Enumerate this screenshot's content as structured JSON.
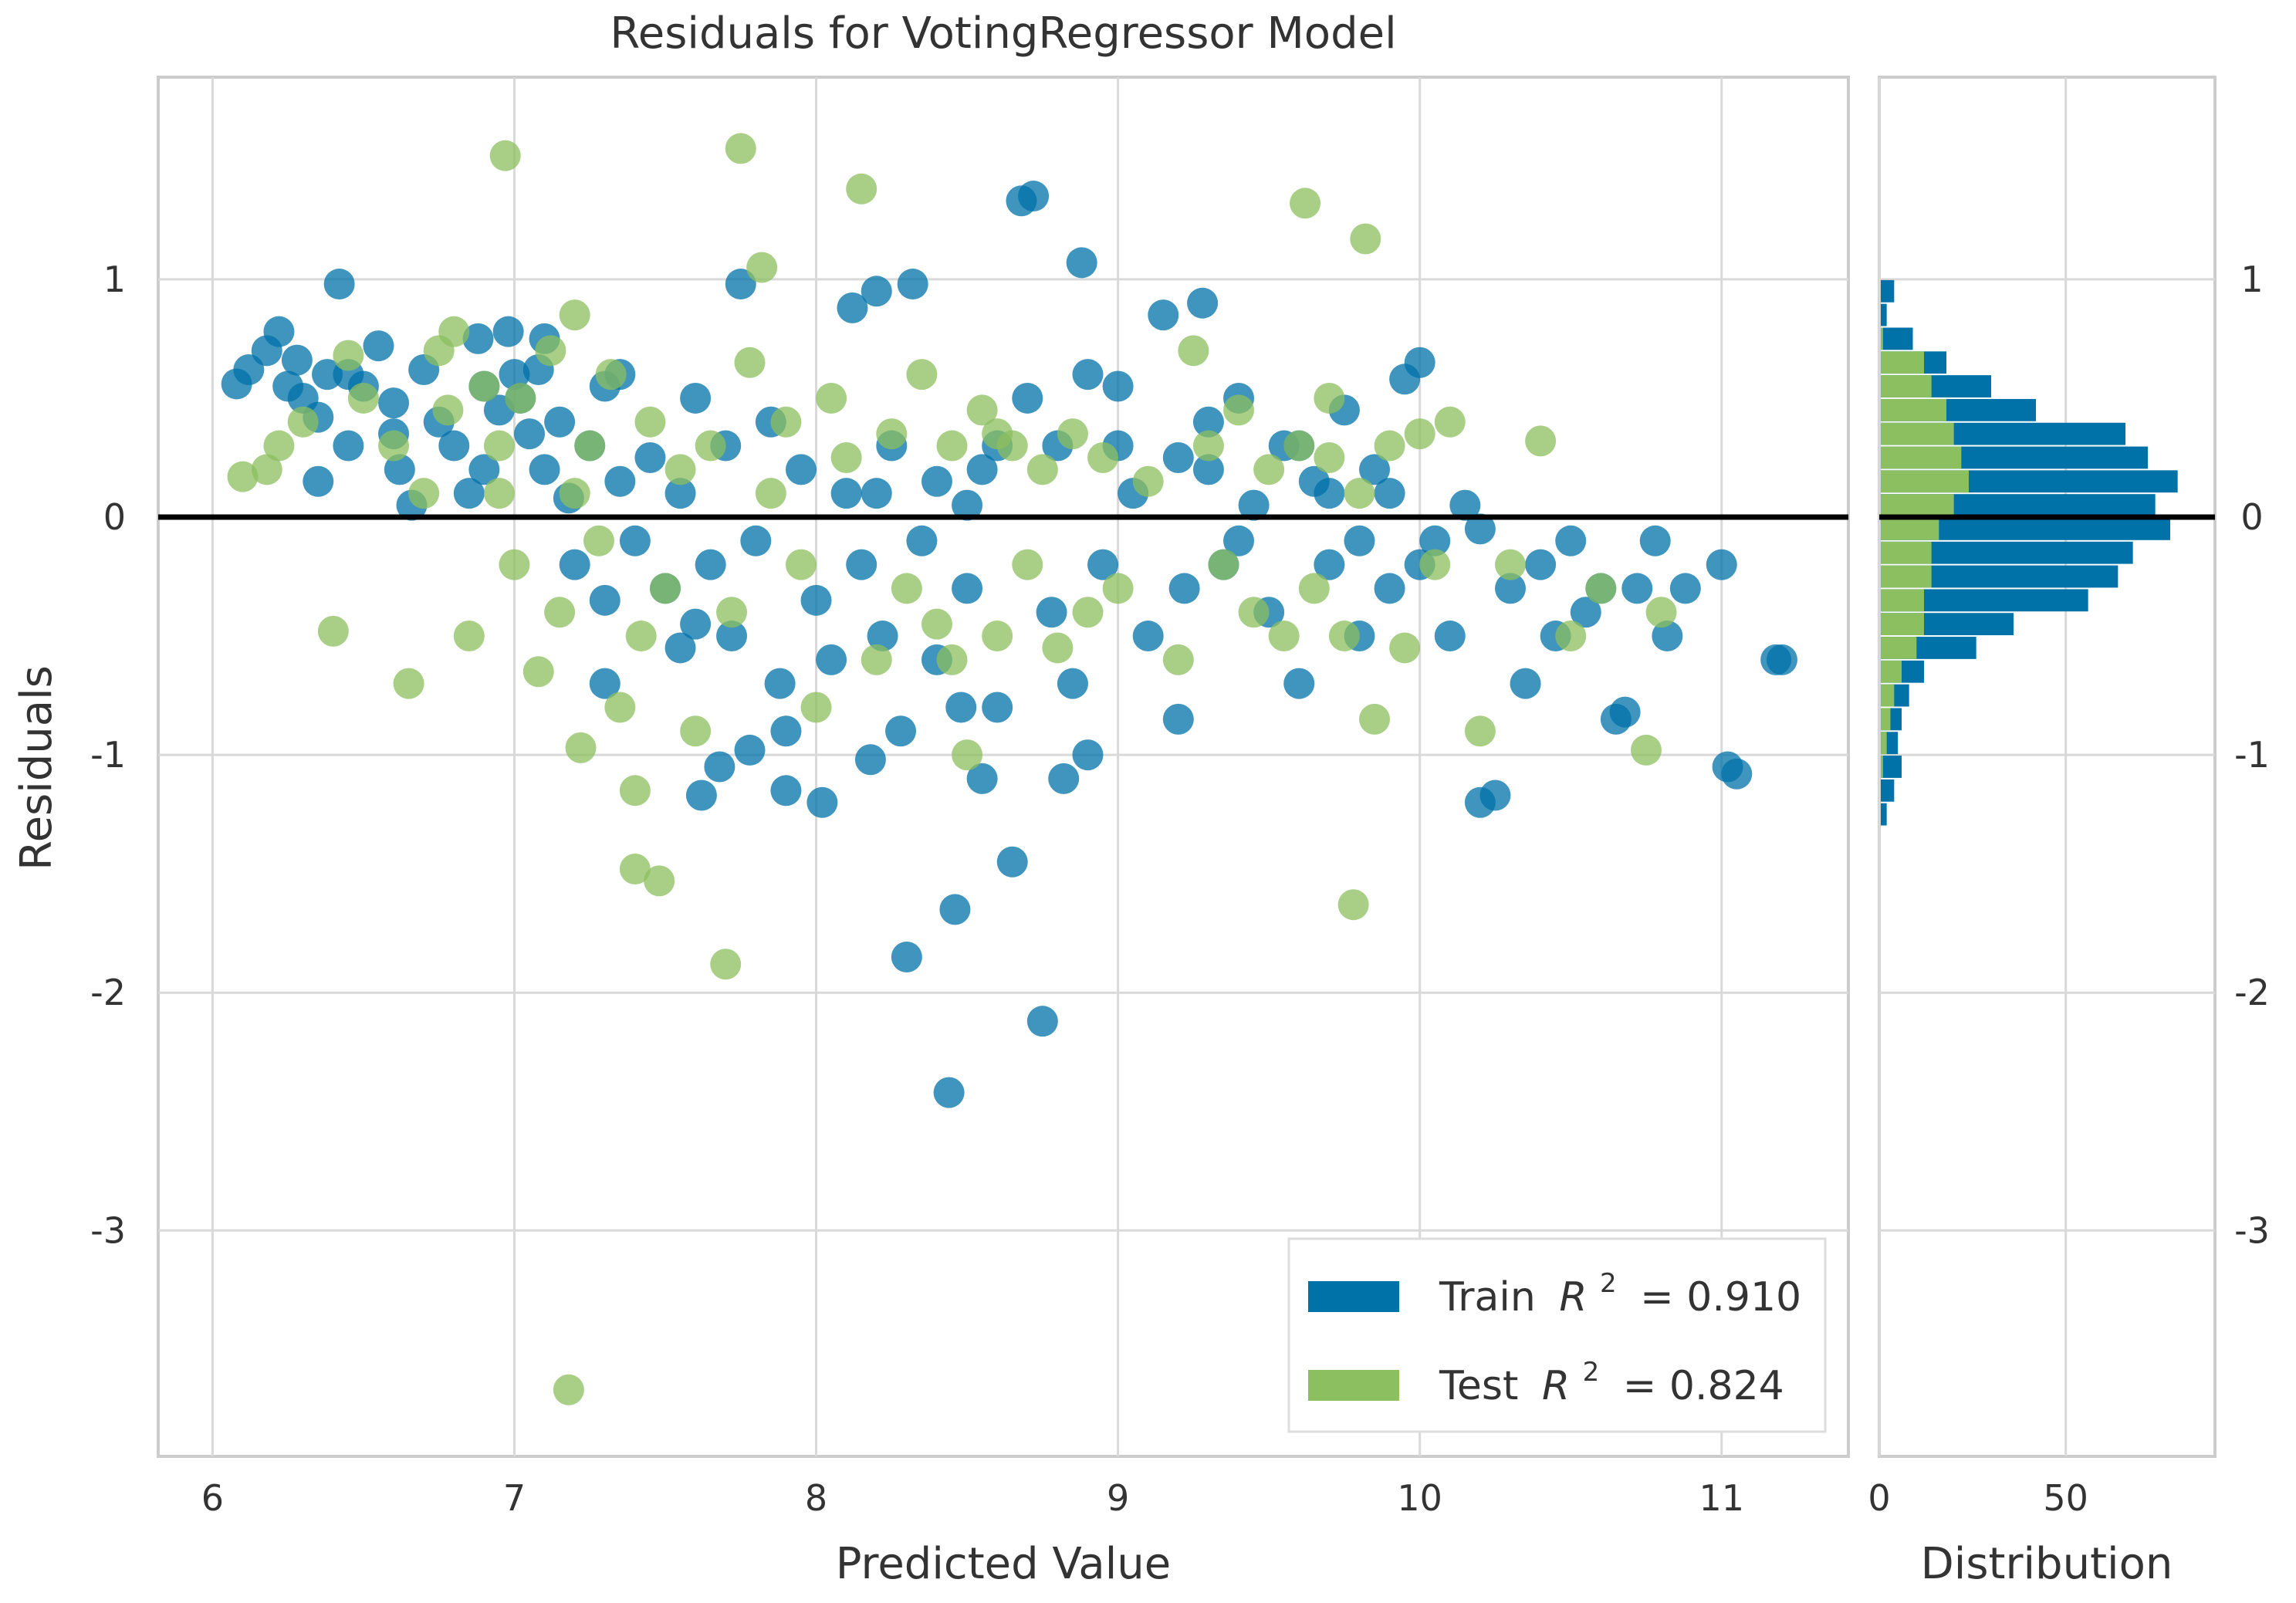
{
  "chart_data": {
    "type": "scatter",
    "title": "Residuals for VotingRegressor Model",
    "xlabel": "Predicted Value",
    "ylabel": "Residuals",
    "xlim": [
      5.82,
      11.42
    ],
    "ylim": [
      -3.95,
      1.85
    ],
    "xticks": [
      6,
      7,
      8,
      9,
      10,
      11
    ],
    "yticks": [
      -3,
      -2,
      -1,
      0,
      1
    ],
    "xtick_labels": [
      "6",
      "7",
      "8",
      "9",
      "10",
      "11"
    ],
    "ytick_labels": [
      "-3",
      "-2",
      "-1",
      "0",
      "1"
    ],
    "grid": true,
    "zero_line": 0,
    "colors": {
      "train": "#0072a8",
      "test": "#8cbf5f",
      "zero_line": "#000000",
      "grid": "#d9d9d9"
    },
    "legend": {
      "position": "lower-right",
      "entries": [
        {
          "name": "Train",
          "r2_symbol": "R",
          "r2_exp": "2",
          "r2_value": "= 0.910"
        },
        {
          "name": "Test",
          "r2_symbol": "R",
          "r2_exp": "2",
          "r2_value": "= 0.824"
        }
      ]
    },
    "series": [
      {
        "name": "Train",
        "points": [
          [
            6.08,
            0.56
          ],
          [
            6.12,
            0.62
          ],
          [
            6.18,
            0.7
          ],
          [
            6.22,
            0.78
          ],
          [
            6.28,
            0.66
          ],
          [
            6.3,
            0.5
          ],
          [
            6.35,
            0.42
          ],
          [
            6.38,
            0.6
          ],
          [
            6.42,
            0.98
          ],
          [
            6.45,
            0.3
          ],
          [
            6.5,
            0.55
          ],
          [
            6.55,
            0.72
          ],
          [
            6.6,
            0.48
          ],
          [
            6.62,
            0.2
          ],
          [
            6.66,
            0.05
          ],
          [
            6.7,
            0.62
          ],
          [
            6.75,
            0.4
          ],
          [
            6.8,
            0.3
          ],
          [
            6.85,
            0.1
          ],
          [
            6.88,
            0.75
          ],
          [
            6.9,
            0.55
          ],
          [
            6.95,
            0.45
          ],
          [
            6.98,
            0.78
          ],
          [
            7.02,
            0.5
          ],
          [
            7.05,
            0.35
          ],
          [
            7.08,
            0.62
          ],
          [
            7.1,
            0.2
          ],
          [
            7.15,
            0.4
          ],
          [
            7.18,
            0.08
          ],
          [
            7.2,
            -0.2
          ],
          [
            7.25,
            0.3
          ],
          [
            7.3,
            0.55
          ],
          [
            7.35,
            0.15
          ],
          [
            7.4,
            -0.1
          ],
          [
            7.45,
            0.25
          ],
          [
            7.5,
            -0.3
          ],
          [
            7.55,
            0.1
          ],
          [
            7.6,
            -0.45
          ],
          [
            7.65,
            -0.2
          ],
          [
            7.7,
            0.3
          ],
          [
            7.72,
            -0.5
          ],
          [
            7.75,
            0.98
          ],
          [
            7.8,
            -0.1
          ],
          [
            7.85,
            0.4
          ],
          [
            7.88,
            -0.7
          ],
          [
            7.9,
            -0.9
          ],
          [
            7.95,
            0.2
          ],
          [
            8.0,
            -0.35
          ],
          [
            8.02,
            -1.2
          ],
          [
            8.05,
            -0.6
          ],
          [
            8.1,
            0.1
          ],
          [
            8.12,
            0.88
          ],
          [
            8.15,
            -0.2
          ],
          [
            8.2,
            0.95
          ],
          [
            8.22,
            -0.5
          ],
          [
            8.25,
            0.3
          ],
          [
            8.28,
            -0.9
          ],
          [
            8.3,
            -1.85
          ],
          [
            8.32,
            0.98
          ],
          [
            8.35,
            -0.1
          ],
          [
            8.4,
            -0.6
          ],
          [
            8.44,
            -2.42
          ],
          [
            8.46,
            -1.65
          ],
          [
            8.5,
            -0.3
          ],
          [
            8.55,
            0.2
          ],
          [
            8.6,
            -0.8
          ],
          [
            8.65,
            -1.45
          ],
          [
            8.68,
            1.33
          ],
          [
            8.72,
            1.35
          ],
          [
            8.75,
            -2.12
          ],
          [
            8.78,
            -0.4
          ],
          [
            8.82,
            -1.1
          ],
          [
            8.85,
            -0.7
          ],
          [
            8.88,
            1.07
          ],
          [
            8.9,
            0.6
          ],
          [
            8.95,
            -0.2
          ],
          [
            9.0,
            0.55
          ],
          [
            9.05,
            0.1
          ],
          [
            9.1,
            -0.5
          ],
          [
            9.15,
            0.85
          ],
          [
            9.2,
            0.25
          ],
          [
            9.22,
            -0.3
          ],
          [
            9.28,
            0.9
          ],
          [
            9.3,
            0.4
          ],
          [
            9.35,
            -0.2
          ],
          [
            9.4,
            0.5
          ],
          [
            9.45,
            0.05
          ],
          [
            9.5,
            -0.4
          ],
          [
            9.55,
            0.3
          ],
          [
            9.6,
            -0.7
          ],
          [
            9.65,
            0.15
          ],
          [
            9.7,
            -0.2
          ],
          [
            9.75,
            0.45
          ],
          [
            9.8,
            -0.5
          ],
          [
            9.85,
            0.2
          ],
          [
            9.9,
            -0.3
          ],
          [
            9.95,
            0.58
          ],
          [
            10.0,
            0.65
          ],
          [
            10.05,
            -0.1
          ],
          [
            10.1,
            -0.5
          ],
          [
            10.15,
            0.05
          ],
          [
            10.2,
            -1.2
          ],
          [
            10.25,
            -1.17
          ],
          [
            10.3,
            -0.3
          ],
          [
            10.35,
            -0.7
          ],
          [
            10.4,
            -0.2
          ],
          [
            10.45,
            -0.5
          ],
          [
            10.5,
            -0.1
          ],
          [
            10.55,
            -0.4
          ],
          [
            10.6,
            -0.3
          ],
          [
            10.65,
            -0.85
          ],
          [
            10.68,
            -0.82
          ],
          [
            10.72,
            -0.3
          ],
          [
            10.78,
            -0.1
          ],
          [
            10.82,
            -0.5
          ],
          [
            10.88,
            -0.3
          ],
          [
            11.0,
            -0.2
          ],
          [
            11.02,
            -1.05
          ],
          [
            11.05,
            -1.08
          ],
          [
            11.18,
            -0.6
          ],
          [
            11.2,
            -0.6
          ],
          [
            7.3,
            -0.35
          ],
          [
            7.55,
            -0.55
          ],
          [
            7.68,
            -1.05
          ],
          [
            7.62,
            -1.17
          ],
          [
            7.78,
            -0.98
          ],
          [
            8.18,
            -1.02
          ],
          [
            8.48,
            -0.8
          ],
          [
            8.55,
            -1.1
          ],
          [
            9.2,
            -0.85
          ],
          [
            8.9,
            -1.0
          ],
          [
            7.9,
            -1.15
          ],
          [
            7.3,
            -0.7
          ],
          [
            6.9,
            0.2
          ],
          [
            7.0,
            0.6
          ],
          [
            6.6,
            0.35
          ],
          [
            6.45,
            0.6
          ],
          [
            6.35,
            0.15
          ],
          [
            6.25,
            0.55
          ],
          [
            7.1,
            0.75
          ],
          [
            7.35,
            0.6
          ],
          [
            7.6,
            0.5
          ],
          [
            8.7,
            0.5
          ],
          [
            8.6,
            0.3
          ],
          [
            9.0,
            0.3
          ],
          [
            9.3,
            0.2
          ],
          [
            9.6,
            0.3
          ],
          [
            9.9,
            0.1
          ],
          [
            10.2,
            -0.05
          ],
          [
            9.7,
            0.1
          ],
          [
            9.4,
            -0.1
          ],
          [
            9.8,
            -0.1
          ],
          [
            10.0,
            -0.2
          ],
          [
            8.5,
            0.05
          ],
          [
            8.8,
            0.3
          ],
          [
            8.4,
            0.15
          ],
          [
            8.2,
            0.1
          ]
        ]
      },
      {
        "name": "Test",
        "points": [
          [
            6.1,
            0.17
          ],
          [
            6.18,
            0.2
          ],
          [
            6.22,
            0.3
          ],
          [
            6.3,
            0.4
          ],
          [
            6.4,
            -0.48
          ],
          [
            6.45,
            0.68
          ],
          [
            6.5,
            0.5
          ],
          [
            6.6,
            0.3
          ],
          [
            6.65,
            -0.7
          ],
          [
            6.7,
            0.1
          ],
          [
            6.75,
            0.7
          ],
          [
            6.78,
            0.45
          ],
          [
            6.8,
            0.78
          ],
          [
            6.85,
            -0.5
          ],
          [
            6.9,
            0.55
          ],
          [
            6.95,
            0.3
          ],
          [
            6.97,
            1.52
          ],
          [
            7.0,
            -0.2
          ],
          [
            7.02,
            0.5
          ],
          [
            7.08,
            -0.65
          ],
          [
            7.12,
            0.7
          ],
          [
            7.15,
            -0.4
          ],
          [
            7.2,
            0.85
          ],
          [
            7.22,
            -0.97
          ],
          [
            7.25,
            0.3
          ],
          [
            7.28,
            -0.1
          ],
          [
            7.32,
            0.6
          ],
          [
            7.35,
            -0.8
          ],
          [
            7.4,
            -1.48
          ],
          [
            7.42,
            -0.5
          ],
          [
            7.45,
            0.4
          ],
          [
            7.48,
            -1.53
          ],
          [
            7.5,
            -0.3
          ],
          [
            7.55,
            0.2
          ],
          [
            7.6,
            -0.9
          ],
          [
            7.65,
            0.3
          ],
          [
            7.7,
            -1.88
          ],
          [
            7.72,
            -0.4
          ],
          [
            7.75,
            1.55
          ],
          [
            7.78,
            0.65
          ],
          [
            7.82,
            1.05
          ],
          [
            7.85,
            0.1
          ],
          [
            7.9,
            0.4
          ],
          [
            7.95,
            -0.2
          ],
          [
            8.0,
            -0.8
          ],
          [
            8.05,
            0.5
          ],
          [
            8.1,
            0.25
          ],
          [
            8.15,
            1.38
          ],
          [
            8.2,
            -0.6
          ],
          [
            8.25,
            0.35
          ],
          [
            8.3,
            -0.3
          ],
          [
            8.35,
            0.6
          ],
          [
            8.4,
            -0.45
          ],
          [
            8.45,
            0.3
          ],
          [
            8.5,
            -1.0
          ],
          [
            8.55,
            0.45
          ],
          [
            8.6,
            -0.5
          ],
          [
            8.65,
            0.3
          ],
          [
            8.7,
            -0.2
          ],
          [
            8.75,
            0.2
          ],
          [
            8.8,
            -0.55
          ],
          [
            8.85,
            0.35
          ],
          [
            8.9,
            -0.4
          ],
          [
            8.95,
            0.25
          ],
          [
            9.0,
            -0.3
          ],
          [
            9.1,
            0.15
          ],
          [
            9.2,
            -0.6
          ],
          [
            9.25,
            0.7
          ],
          [
            9.3,
            0.3
          ],
          [
            9.35,
            -0.2
          ],
          [
            9.4,
            0.45
          ],
          [
            9.45,
            -0.4
          ],
          [
            9.5,
            0.2
          ],
          [
            9.55,
            -0.5
          ],
          [
            9.6,
            0.3
          ],
          [
            9.62,
            1.32
          ],
          [
            9.65,
            -0.3
          ],
          [
            9.7,
            0.5
          ],
          [
            9.75,
            -0.5
          ],
          [
            9.78,
            -1.63
          ],
          [
            9.8,
            0.1
          ],
          [
            9.82,
            1.17
          ],
          [
            9.85,
            -0.85
          ],
          [
            9.9,
            0.3
          ],
          [
            9.95,
            -0.55
          ],
          [
            10.0,
            0.35
          ],
          [
            10.05,
            -0.2
          ],
          [
            10.1,
            0.4
          ],
          [
            10.2,
            -0.9
          ],
          [
            10.3,
            -0.2
          ],
          [
            10.4,
            0.32
          ],
          [
            10.5,
            -0.5
          ],
          [
            10.6,
            -0.3
          ],
          [
            10.75,
            -0.98
          ],
          [
            10.8,
            -0.4
          ],
          [
            7.18,
            -3.67
          ],
          [
            8.45,
            -0.6
          ],
          [
            7.4,
            -1.15
          ],
          [
            7.2,
            0.1
          ],
          [
            6.95,
            0.1
          ],
          [
            8.6,
            0.35
          ],
          [
            9.7,
            0.25
          ]
        ]
      }
    ],
    "histogram": {
      "xlabel": "Distribution",
      "xticks": [
        0,
        50
      ],
      "xtick_labels": [
        "0",
        "50"
      ],
      "xlim": [
        0,
        90
      ],
      "bin_width": 0.1,
      "bins": [
        {
          "y": 0.95,
          "train": 4,
          "test": 0
        },
        {
          "y": 0.85,
          "train": 2,
          "test": 0
        },
        {
          "y": 0.75,
          "train": 9,
          "test": 1
        },
        {
          "y": 0.65,
          "train": 18,
          "test": 12
        },
        {
          "y": 0.55,
          "train": 30,
          "test": 14
        },
        {
          "y": 0.45,
          "train": 42,
          "test": 18
        },
        {
          "y": 0.35,
          "train": 66,
          "test": 20
        },
        {
          "y": 0.25,
          "train": 72,
          "test": 22
        },
        {
          "y": 0.15,
          "train": 80,
          "test": 24
        },
        {
          "y": 0.05,
          "train": 74,
          "test": 20
        },
        {
          "y": -0.05,
          "train": 78,
          "test": 16
        },
        {
          "y": -0.15,
          "train": 68,
          "test": 14
        },
        {
          "y": -0.25,
          "train": 64,
          "test": 14
        },
        {
          "y": -0.35,
          "train": 56,
          "test": 12
        },
        {
          "y": -0.45,
          "train": 36,
          "test": 12
        },
        {
          "y": -0.55,
          "train": 26,
          "test": 10
        },
        {
          "y": -0.65,
          "train": 12,
          "test": 6
        },
        {
          "y": -0.75,
          "train": 8,
          "test": 4
        },
        {
          "y": -0.85,
          "train": 6,
          "test": 3
        },
        {
          "y": -0.95,
          "train": 5,
          "test": 2
        },
        {
          "y": -1.05,
          "train": 6,
          "test": 1
        },
        {
          "y": -1.15,
          "train": 4,
          "test": 0
        },
        {
          "y": -1.25,
          "train": 2,
          "test": 0
        }
      ]
    }
  }
}
